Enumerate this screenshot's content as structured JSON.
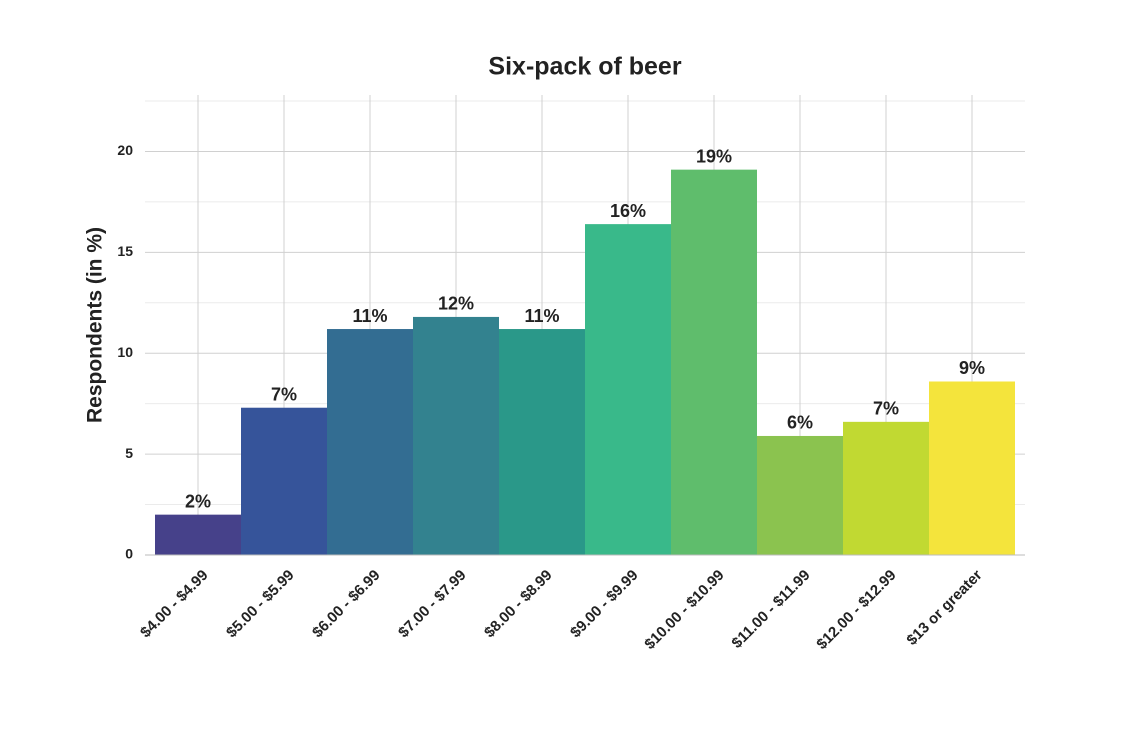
{
  "chart_data": {
    "type": "bar",
    "title": "Six-pack of beer",
    "y_label": "Respondents (in %)",
    "categories": [
      "$4.00 - $4.99",
      "$5.00 - $5.99",
      "$6.00 - $6.99",
      "$7.00 - $7.99",
      "$8.00 - $8.99",
      "$9.00 - $9.99",
      "$10.00 - $10.99",
      "$11.00 - $11.99",
      "$12.00 - $12.99",
      "$13 or greater"
    ],
    "values": [
      2.0,
      7.3,
      11.2,
      11.8,
      11.2,
      16.4,
      19.1,
      5.9,
      6.6,
      8.6
    ],
    "value_labels": [
      "2%",
      "7%",
      "11%",
      "12%",
      "11%",
      "16%",
      "19%",
      "6%",
      "7%",
      "9%"
    ],
    "colors": [
      "#46418a",
      "#36549a",
      "#336d92",
      "#33828f",
      "#2a9889",
      "#39b98a",
      "#5fbd6c",
      "#8bc34f",
      "#c1d932",
      "#f4e43c"
    ],
    "ylim": [
      0,
      22.8
    ],
    "yticks": [
      0,
      5,
      10,
      15,
      20
    ],
    "y_minor_gridlines": [
      2.5,
      7.5,
      12.5,
      17.5,
      22.5
    ],
    "grid": true
  }
}
